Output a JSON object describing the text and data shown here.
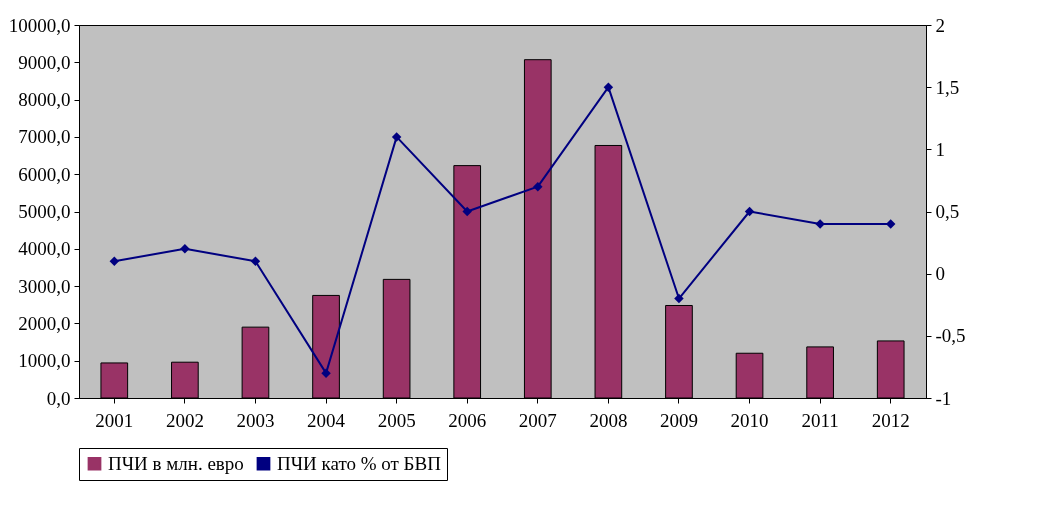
{
  "chart_data": {
    "type": "bar",
    "categories": [
      "2001",
      "2002",
      "2003",
      "2004",
      "2005",
      "2006",
      "2007",
      "2008",
      "2009",
      "2010",
      "2011",
      "2012"
    ],
    "series": [
      {
        "name": "ПЧИ в млн. евро",
        "color": "#993366",
        "values": [
          940,
          960,
          1900,
          2750,
          3180,
          6230,
          9070,
          6770,
          2480,
          1200,
          1370,
          1530
        ]
      },
      {
        "name": "ПЧИ като % от БВП",
        "type": "line",
        "axis": "y2",
        "color": "#000080",
        "values": [
          0.1,
          0.2,
          0.1,
          -0.8,
          1.1,
          0.5,
          0.7,
          1.5,
          -0.2,
          0.5,
          0.4,
          0.4
        ]
      }
    ],
    "ylim": [
      0,
      10000
    ],
    "yticks": [
      {
        "value": 0,
        "label": "0,0"
      },
      {
        "value": 1000,
        "label": "1000,0"
      },
      {
        "value": 2000,
        "label": "2000,0"
      },
      {
        "value": 3000,
        "label": "3000,0"
      },
      {
        "value": 4000,
        "label": "4000,0"
      },
      {
        "value": 5000,
        "label": "5000,0"
      },
      {
        "value": 6000,
        "label": "6000,0"
      },
      {
        "value": 7000,
        "label": "7000,0"
      },
      {
        "value": 8000,
        "label": "8000,0"
      },
      {
        "value": 9000,
        "label": "9000,0"
      },
      {
        "value": 10000,
        "label": "10000,0"
      }
    ],
    "y2lim": [
      -1,
      2
    ],
    "y2ticks": [
      -1,
      {
        "value": -0.5,
        "label": "-0,5"
      },
      0,
      {
        "value": 0.5,
        "label": "0,5"
      },
      1,
      {
        "value": 1.5,
        "label": "1,5"
      },
      2
    ],
    "grid": false,
    "legend": "bottom",
    "marker": "diamond",
    "line_style": "solid"
  }
}
